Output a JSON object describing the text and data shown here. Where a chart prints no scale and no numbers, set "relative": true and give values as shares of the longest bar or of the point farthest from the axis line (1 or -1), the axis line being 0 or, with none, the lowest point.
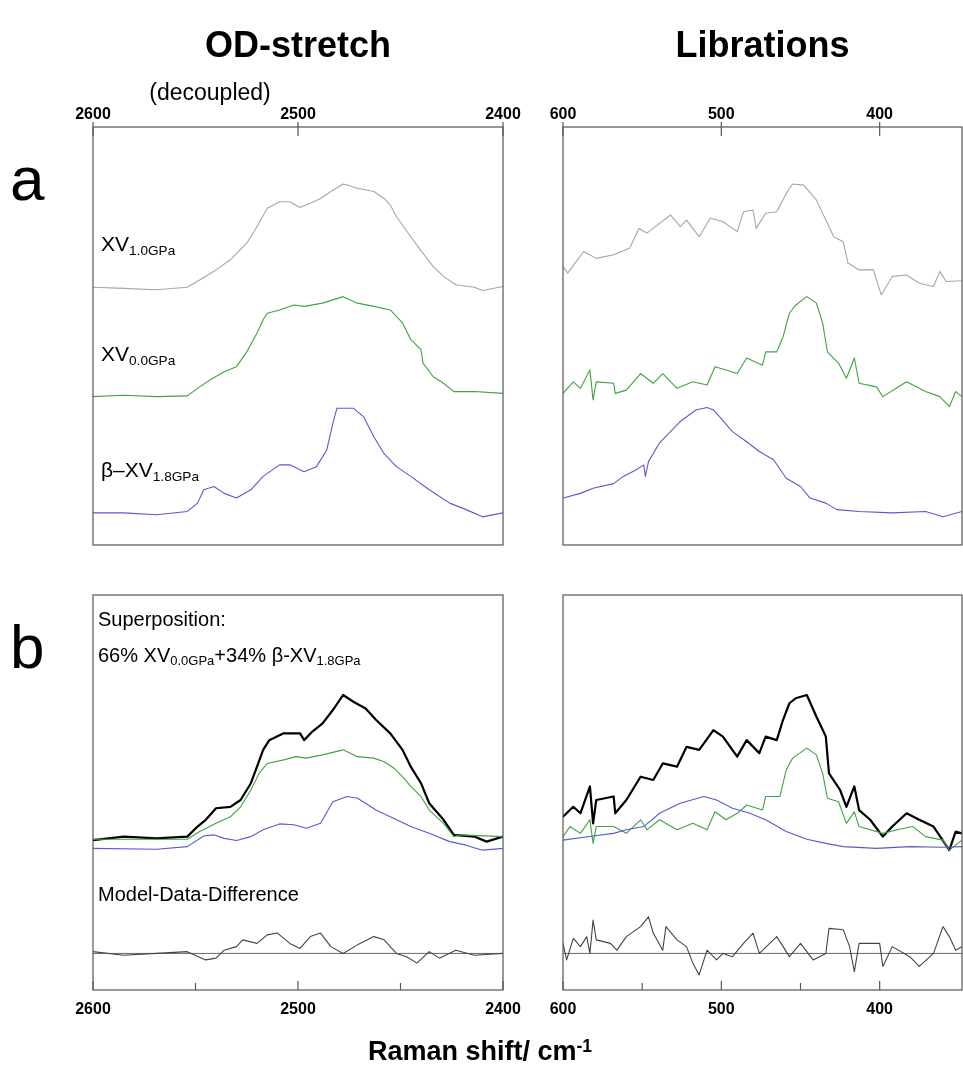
{
  "chart_data": [
    {
      "type": "line",
      "title": "OD-stretch",
      "subtitle": "(decoupled)",
      "relative": true,
      "xlim": [
        2600,
        2400
      ],
      "xticks": [
        2600,
        2500,
        2400
      ],
      "annotations": [
        "a"
      ],
      "series": [
        {
          "name": "XV$_{1.0GPa}$",
          "color": "#a6a6a6",
          "x": [
            2600,
            2585,
            2569,
            2554,
            2548,
            2540,
            2533,
            2525,
            2520,
            2515,
            2509,
            2504,
            2499,
            2494,
            2489,
            2484,
            2478,
            2476,
            2471,
            2463,
            2458,
            2455,
            2452,
            2445,
            2439,
            2434,
            2429,
            2423,
            2414,
            2410,
            2400
          ],
          "values": [
            0.714,
            0.711,
            0.707,
            0.714,
            0.734,
            0.762,
            0.79,
            0.836,
            0.882,
            0.933,
            0.951,
            0.951,
            0.935,
            0.947,
            0.96,
            0.979,
            1.0,
            0.997,
            0.988,
            0.979,
            0.96,
            0.942,
            0.91,
            0.854,
            0.808,
            0.771,
            0.744,
            0.721,
            0.714,
            0.705,
            0.716
          ]
        },
        {
          "name": "XV$_{0.0GPa}$",
          "color": "#3fa33f",
          "x": [
            2600,
            2585,
            2569,
            2554,
            2548,
            2543,
            2536,
            2530,
            2525,
            2520,
            2517,
            2515,
            2509,
            2502,
            2497,
            2488,
            2478,
            2471,
            2463,
            2455,
            2449,
            2445,
            2440,
            2439,
            2434,
            2429,
            2424,
            2414,
            2400
          ],
          "values": [
            0.411,
            0.415,
            0.411,
            0.413,
            0.438,
            0.457,
            0.48,
            0.494,
            0.535,
            0.587,
            0.624,
            0.642,
            0.651,
            0.665,
            0.661,
            0.67,
            0.688,
            0.67,
            0.661,
            0.651,
            0.615,
            0.569,
            0.541,
            0.504,
            0.466,
            0.448,
            0.425,
            0.425,
            0.42
          ]
        },
        {
          "name": "β–XV$_{1.8GPa}$",
          "color": "#5a5acd",
          "x": [
            2600,
            2585,
            2569,
            2554,
            2549,
            2546,
            2541,
            2536,
            2530,
            2523,
            2517,
            2509,
            2504,
            2497,
            2491,
            2486,
            2483,
            2481,
            2473,
            2468,
            2463,
            2458,
            2452,
            2445,
            2436,
            2426,
            2418,
            2410,
            2400
          ],
          "values": [
            0.089,
            0.089,
            0.084,
            0.093,
            0.116,
            0.153,
            0.162,
            0.143,
            0.13,
            0.153,
            0.19,
            0.222,
            0.222,
            0.203,
            0.217,
            0.263,
            0.337,
            0.379,
            0.379,
            0.355,
            0.3,
            0.253,
            0.217,
            0.19,
            0.153,
            0.116,
            0.098,
            0.078,
            0.089
          ]
        }
      ]
    },
    {
      "type": "line",
      "title": "Librations",
      "relative": true,
      "xlim": [
        600,
        348
      ],
      "xticks": [
        600,
        500,
        400
      ],
      "series": [
        {
          "color": "#a6a6a6",
          "x": [
            600,
            597,
            587,
            579,
            568,
            558,
            552,
            547,
            539,
            532,
            526,
            522,
            514,
            507,
            499,
            490,
            486,
            480,
            478,
            472,
            465,
            459,
            455,
            448,
            440,
            429,
            423,
            420,
            413,
            404,
            399,
            392,
            383,
            375,
            366,
            362,
            358,
            348
          ],
          "values": [
            0.771,
            0.753,
            0.813,
            0.794,
            0.804,
            0.822,
            0.877,
            0.864,
            0.891,
            0.914,
            0.882,
            0.9,
            0.854,
            0.905,
            0.896,
            0.868,
            0.923,
            0.928,
            0.877,
            0.919,
            0.923,
            0.974,
            1.0,
            0.997,
            0.956,
            0.854,
            0.84,
            0.781,
            0.762,
            0.762,
            0.693,
            0.744,
            0.748,
            0.725,
            0.716,
            0.758,
            0.73,
            0.732
          ]
        },
        {
          "color": "#3fa33f",
          "x": [
            600,
            593.5,
            589,
            583,
            581,
            579,
            568,
            567,
            560,
            551,
            543,
            537,
            528,
            518,
            509,
            504,
            497,
            490,
            484,
            474,
            472,
            465,
            461,
            457,
            453,
            446,
            440,
            436,
            433,
            426,
            421,
            416,
            413,
            402,
            398,
            383,
            371,
            362,
            356,
            352,
            348
          ],
          "values": [
            0.42,
            0.452,
            0.434,
            0.485,
            0.402,
            0.452,
            0.448,
            0.42,
            0.429,
            0.475,
            0.448,
            0.475,
            0.434,
            0.452,
            0.443,
            0.494,
            0.485,
            0.475,
            0.518,
            0.498,
            0.535,
            0.535,
            0.577,
            0.642,
            0.665,
            0.688,
            0.67,
            0.615,
            0.535,
            0.504,
            0.462,
            0.518,
            0.448,
            0.438,
            0.411,
            0.452,
            0.425,
            0.411,
            0.383,
            0.425,
            0.411
          ]
        },
        {
          "color": "#5a5acd",
          "x": [
            600,
            589,
            581,
            568,
            562,
            554,
            549,
            548,
            546,
            539,
            526,
            516,
            509,
            505,
            501,
            493,
            484,
            476,
            467,
            459,
            450,
            444,
            434,
            427,
            413,
            392,
            371,
            360,
            348
          ],
          "values": [
            0.13,
            0.143,
            0.157,
            0.17,
            0.19,
            0.208,
            0.222,
            0.19,
            0.231,
            0.283,
            0.342,
            0.374,
            0.381,
            0.374,
            0.355,
            0.314,
            0.286,
            0.259,
            0.236,
            0.185,
            0.162,
            0.13,
            0.116,
            0.098,
            0.093,
            0.089,
            0.093,
            0.078,
            0.093
          ]
        }
      ]
    },
    {
      "type": "line",
      "relative": true,
      "xlim": [
        2600,
        2400
      ],
      "xticks": [
        2600,
        {
          "value": 2550,
          "label": null
        },
        2500,
        {
          "value": 2450,
          "label": null
        },
        2400
      ],
      "xlabel": "Raman shift/ cm$^{-1}$",
      "annotations": [
        "b",
        "Superposition:",
        "66% XV$_{0.0GPa}$+34% β-XV$_{1.8GPa}$",
        "Model-Data-Difference"
      ],
      "ref_lines": [
        {
          "axis": "y",
          "value": 0.124,
          "color": "#666666"
        }
      ],
      "series": [
        {
          "color": "#000000",
          "x": [
            2600,
            2585,
            2569,
            2554,
            2549,
            2545,
            2540,
            2533,
            2528,
            2523,
            2520,
            2517,
            2514,
            2507,
            2499,
            2497,
            2493,
            2488,
            2483,
            2478,
            2473,
            2467,
            2462,
            2455,
            2449,
            2445,
            2440,
            2436,
            2429,
            2424,
            2414,
            2408,
            2400
          ],
          "values": [
            0.508,
            0.52,
            0.514,
            0.52,
            0.554,
            0.577,
            0.616,
            0.621,
            0.644,
            0.701,
            0.757,
            0.814,
            0.847,
            0.87,
            0.87,
            0.847,
            0.876,
            0.904,
            0.949,
            1.0,
            0.977,
            0.954,
            0.916,
            0.87,
            0.814,
            0.757,
            0.701,
            0.633,
            0.577,
            0.526,
            0.52,
            0.503,
            0.52
          ]
        },
        {
          "color": "#3fa33f",
          "x": [
            2600,
            2554,
            2548,
            2543,
            2540,
            2533,
            2528,
            2523,
            2519,
            2515,
            2507,
            2501,
            2496,
            2488,
            2478,
            2471,
            2463,
            2458,
            2453,
            2449,
            2445,
            2440,
            2436,
            2429,
            2424,
            2421,
            2400
          ],
          "values": [
            0.511,
            0.511,
            0.537,
            0.554,
            0.565,
            0.587,
            0.621,
            0.678,
            0.734,
            0.768,
            0.78,
            0.791,
            0.786,
            0.797,
            0.814,
            0.791,
            0.786,
            0.774,
            0.751,
            0.723,
            0.69,
            0.656,
            0.61,
            0.565,
            0.52,
            0.526,
            0.52
          ]
        },
        {
          "color": "#5a5acd",
          "x": [
            2600,
            2569,
            2554,
            2546,
            2541,
            2536,
            2530,
            2523,
            2517,
            2509,
            2502,
            2496,
            2489,
            2483,
            2476,
            2471,
            2467,
            2462,
            2455,
            2445,
            2436,
            2426,
            2418,
            2410,
            2400
          ],
          "values": [
            0.48,
            0.477,
            0.486,
            0.522,
            0.526,
            0.514,
            0.507,
            0.52,
            0.543,
            0.563,
            0.56,
            0.548,
            0.565,
            0.638,
            0.656,
            0.65,
            0.633,
            0.61,
            0.587,
            0.554,
            0.531,
            0.503,
            0.491,
            0.474,
            0.48
          ]
        },
        {
          "color": "#444444",
          "x": [
            2600,
            2585,
            2569,
            2554,
            2545,
            2540,
            2536,
            2530,
            2527,
            2520,
            2515,
            2510,
            2504,
            2499,
            2494,
            2489,
            2484,
            2478,
            2471,
            2463,
            2458,
            2452,
            2447,
            2442,
            2436,
            2431,
            2423,
            2414,
            2400
          ],
          "values": [
            0.13,
            0.118,
            0.124,
            0.13,
            0.102,
            0.108,
            0.135,
            0.147,
            0.17,
            0.158,
            0.187,
            0.193,
            0.158,
            0.141,
            0.181,
            0.193,
            0.147,
            0.124,
            0.153,
            0.181,
            0.17,
            0.124,
            0.113,
            0.091,
            0.13,
            0.108,
            0.135,
            0.118,
            0.124
          ]
        }
      ]
    },
    {
      "type": "line",
      "relative": true,
      "xlim": [
        600,
        348
      ],
      "xticks": [
        600,
        {
          "value": 550,
          "label": null
        },
        500,
        {
          "value": 450,
          "label": null
        },
        400
      ],
      "ref_lines": [
        {
          "axis": "y",
          "value": 0.124,
          "color": "#666666"
        }
      ],
      "series": [
        {
          "color": "#000000",
          "x": [
            600,
            593.5,
            589,
            583,
            581,
            579,
            568,
            567,
            560,
            551,
            543,
            537,
            528,
            522,
            514,
            505,
            499,
            490,
            484,
            476,
            472,
            465,
            461,
            457,
            453,
            446,
            440,
            434,
            432,
            425,
            421,
            416,
            413,
            406,
            398,
            392,
            383,
            375,
            366,
            356,
            352,
            348
          ],
          "values": [
            0.587,
            0.621,
            0.599,
            0.69,
            0.565,
            0.644,
            0.656,
            0.599,
            0.644,
            0.723,
            0.712,
            0.768,
            0.757,
            0.824,
            0.814,
            0.881,
            0.859,
            0.791,
            0.847,
            0.803,
            0.859,
            0.847,
            0.916,
            0.972,
            0.989,
            1.0,
            0.927,
            0.859,
            0.734,
            0.678,
            0.621,
            0.69,
            0.61,
            0.577,
            0.52,
            0.554,
            0.599,
            0.577,
            0.554,
            0.474,
            0.537,
            0.531
          ]
        },
        {
          "color": "#3fa33f",
          "x": [
            600,
            595.6,
            589,
            583,
            581,
            579,
            568,
            560,
            551,
            547,
            539,
            528,
            518,
            509,
            504,
            497,
            490,
            484,
            474,
            472,
            463,
            459,
            455,
            446,
            440,
            436,
            433,
            426,
            421,
            416,
            413,
            398,
            389,
            379,
            371,
            360,
            356,
            348
          ],
          "values": [
            0.52,
            0.554,
            0.531,
            0.577,
            0.497,
            0.554,
            0.554,
            0.531,
            0.577,
            0.543,
            0.577,
            0.543,
            0.565,
            0.543,
            0.604,
            0.577,
            0.599,
            0.627,
            0.61,
            0.656,
            0.656,
            0.746,
            0.786,
            0.82,
            0.797,
            0.734,
            0.65,
            0.638,
            0.565,
            0.604,
            0.554,
            0.531,
            0.543,
            0.554,
            0.52,
            0.508,
            0.474,
            0.508
          ]
        },
        {
          "color": "#5a5acd",
          "x": [
            600,
            581,
            568,
            560,
            549,
            539,
            526,
            511,
            503,
            493,
            482,
            472,
            459,
            446,
            434,
            423,
            402,
            381,
            360,
            348
          ],
          "values": [
            0.508,
            0.522,
            0.531,
            0.543,
            0.554,
            0.599,
            0.633,
            0.656,
            0.644,
            0.616,
            0.599,
            0.577,
            0.537,
            0.511,
            0.497,
            0.486,
            0.48,
            0.486,
            0.484,
            0.486
          ]
        },
        {
          "color": "#444444",
          "x": [
            600,
            597.7,
            593.5,
            589,
            585,
            583,
            581,
            579,
            570,
            566,
            560,
            551,
            546,
            543,
            537,
            535,
            528,
            522,
            518,
            514,
            509,
            503,
            499,
            493,
            486,
            480,
            476,
            465,
            457,
            450,
            442,
            434,
            432,
            423,
            419,
            416,
            413,
            400,
            398,
            392,
            381,
            375,
            366,
            360,
            356,
            352,
            348
          ],
          "values": [
            0.158,
            0.102,
            0.175,
            0.147,
            0.181,
            0.124,
            0.237,
            0.17,
            0.158,
            0.135,
            0.181,
            0.215,
            0.248,
            0.193,
            0.135,
            0.215,
            0.17,
            0.147,
            0.091,
            0.051,
            0.135,
            0.102,
            0.124,
            0.113,
            0.158,
            0.193,
            0.124,
            0.181,
            0.113,
            0.158,
            0.102,
            0.124,
            0.209,
            0.204,
            0.147,
            0.062,
            0.158,
            0.158,
            0.08,
            0.147,
            0.113,
            0.08,
            0.124,
            0.215,
            0.181,
            0.135,
            0.147
          ]
        }
      ]
    }
  ]
}
